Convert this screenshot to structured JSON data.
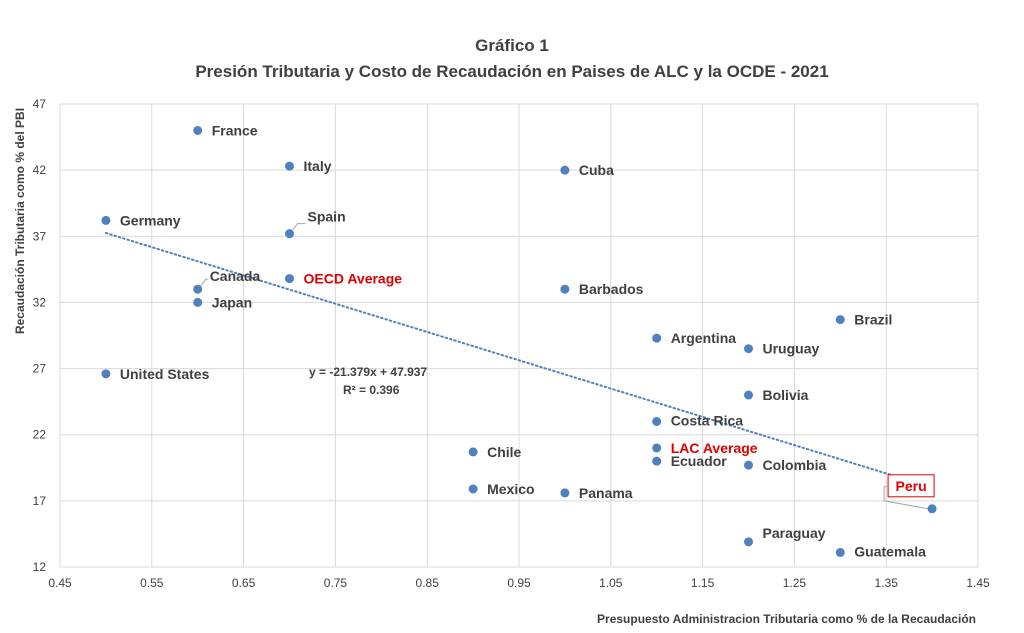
{
  "chart_data": {
    "type": "scatter",
    "title": "Gráfico 1",
    "subtitle": "Presión Tributaria y Costo de Recaudación en Paises de ALC y la OCDE - 2021",
    "xlabel": "Presupuesto Administracion Tributaria como % de la Recaudación",
    "ylabel": "Recaudación Tributaria como % del PBI",
    "xlim": [
      0.45,
      1.45
    ],
    "ylim": [
      12,
      47
    ],
    "xticks": [
      "0.45",
      "0.55",
      "0.65",
      "0.75",
      "0.85",
      "0.95",
      "1.05",
      "1.15",
      "1.25",
      "1.35",
      "1.45"
    ],
    "yticks": [
      "12",
      "17",
      "22",
      "27",
      "32",
      "37",
      "42",
      "47"
    ],
    "grid": true,
    "point_color": "#4f81bd",
    "trendline": {
      "type": "linear",
      "slope": -21.379,
      "intercept": 47.937,
      "equation": "y = -21.379x + 47.937",
      "r2": "R² = 0.396",
      "color": "#4f81bd",
      "style": "dotted"
    },
    "points": [
      {
        "label": "France",
        "x": 0.6,
        "y": 45.0
      },
      {
        "label": "Italy",
        "x": 0.7,
        "y": 42.3
      },
      {
        "label": "Cuba",
        "x": 1.0,
        "y": 42.0
      },
      {
        "label": "Germany",
        "x": 0.5,
        "y": 38.2
      },
      {
        "label": "Spain",
        "x": 0.7,
        "y": 37.2
      },
      {
        "label": "OECD Average",
        "x": 0.7,
        "y": 33.8,
        "highlight": "red"
      },
      {
        "label": "Canada",
        "x": 0.6,
        "y": 33.0
      },
      {
        "label": "Japan",
        "x": 0.6,
        "y": 32.0
      },
      {
        "label": "Barbados",
        "x": 1.0,
        "y": 33.0
      },
      {
        "label": "Brazil",
        "x": 1.3,
        "y": 30.7
      },
      {
        "label": "Argentina",
        "x": 1.1,
        "y": 29.3
      },
      {
        "label": "Uruguay",
        "x": 1.2,
        "y": 28.5
      },
      {
        "label": "United States",
        "x": 0.5,
        "y": 26.6
      },
      {
        "label": "Bolivia",
        "x": 1.2,
        "y": 25.0
      },
      {
        "label": "Costa Rica",
        "x": 1.1,
        "y": 23.0
      },
      {
        "label": "LAC Average",
        "x": 1.1,
        "y": 21.0,
        "highlight": "red"
      },
      {
        "label": "Chile",
        "x": 0.9,
        "y": 20.7
      },
      {
        "label": "Ecuador",
        "x": 1.1,
        "y": 20.0
      },
      {
        "label": "Colombia",
        "x": 1.2,
        "y": 19.7
      },
      {
        "label": "Mexico",
        "x": 0.9,
        "y": 17.9
      },
      {
        "label": "Panama",
        "x": 1.0,
        "y": 17.6
      },
      {
        "label": "Peru",
        "x": 1.4,
        "y": 16.4,
        "highlight": "boxed"
      },
      {
        "label": "Paraguay",
        "x": 1.2,
        "y": 13.9
      },
      {
        "label": "Guatemala",
        "x": 1.3,
        "y": 13.1
      }
    ]
  }
}
